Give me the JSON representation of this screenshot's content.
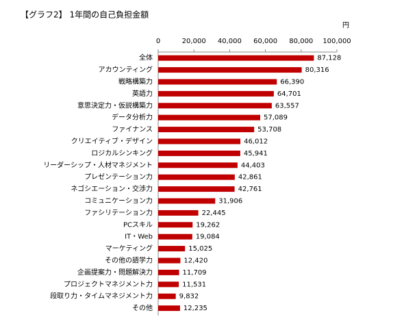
{
  "chart_data": {
    "type": "bar",
    "orientation": "horizontal",
    "title": "【グラフ2】 1年間の自己負担金額",
    "x_label": "円",
    "color": "#c00000",
    "categories": [
      "全体",
      "アカウンティング",
      "戦略構築力",
      "英語力",
      "意思決定力・仮説構築力",
      "データ分析力",
      "ファイナンス",
      "クリエイティブ・デザイン",
      "ロジカルシンキング",
      "リーダーシップ・人材マネジメント",
      "プレゼンテーション力",
      "ネゴシエーション・交渉力",
      "コミュニケーション力",
      "ファシリテーション力",
      "PCスキル",
      "IT・Web",
      "マーケティング",
      "その他の語学力",
      "企画提案力・問題解決力",
      "プロジェクトマネジメント力",
      "段取り力・タイムマネジメント力",
      "その他"
    ],
    "values": [
      87128,
      80316,
      66390,
      64701,
      63557,
      57089,
      53708,
      46012,
      45941,
      44403,
      42861,
      42761,
      31906,
      22445,
      19262,
      19084,
      15025,
      12420,
      11709,
      11531,
      9832,
      12235
    ],
    "value_labels": [
      "87,128",
      "80,316",
      "66,390",
      "64,701",
      "63,557",
      "57,089",
      "53,708",
      "46,012",
      "45,941",
      "44,403",
      "42,861",
      "42,761",
      "31,906",
      "22,445",
      "19,262",
      "19,084",
      "15,025",
      "12,420",
      "11,709",
      "11,531",
      "9,832",
      "12,235"
    ],
    "xlim": [
      0,
      100000
    ],
    "xticks": [
      0,
      {
        "value": 20000,
        "label": "20,000"
      },
      {
        "value": 40000,
        "label": "40,000"
      },
      {
        "value": 60000,
        "label": "60,000"
      },
      {
        "value": 80000,
        "label": "80,000"
      },
      {
        "value": 100000,
        "label": "100,000"
      }
    ]
  }
}
